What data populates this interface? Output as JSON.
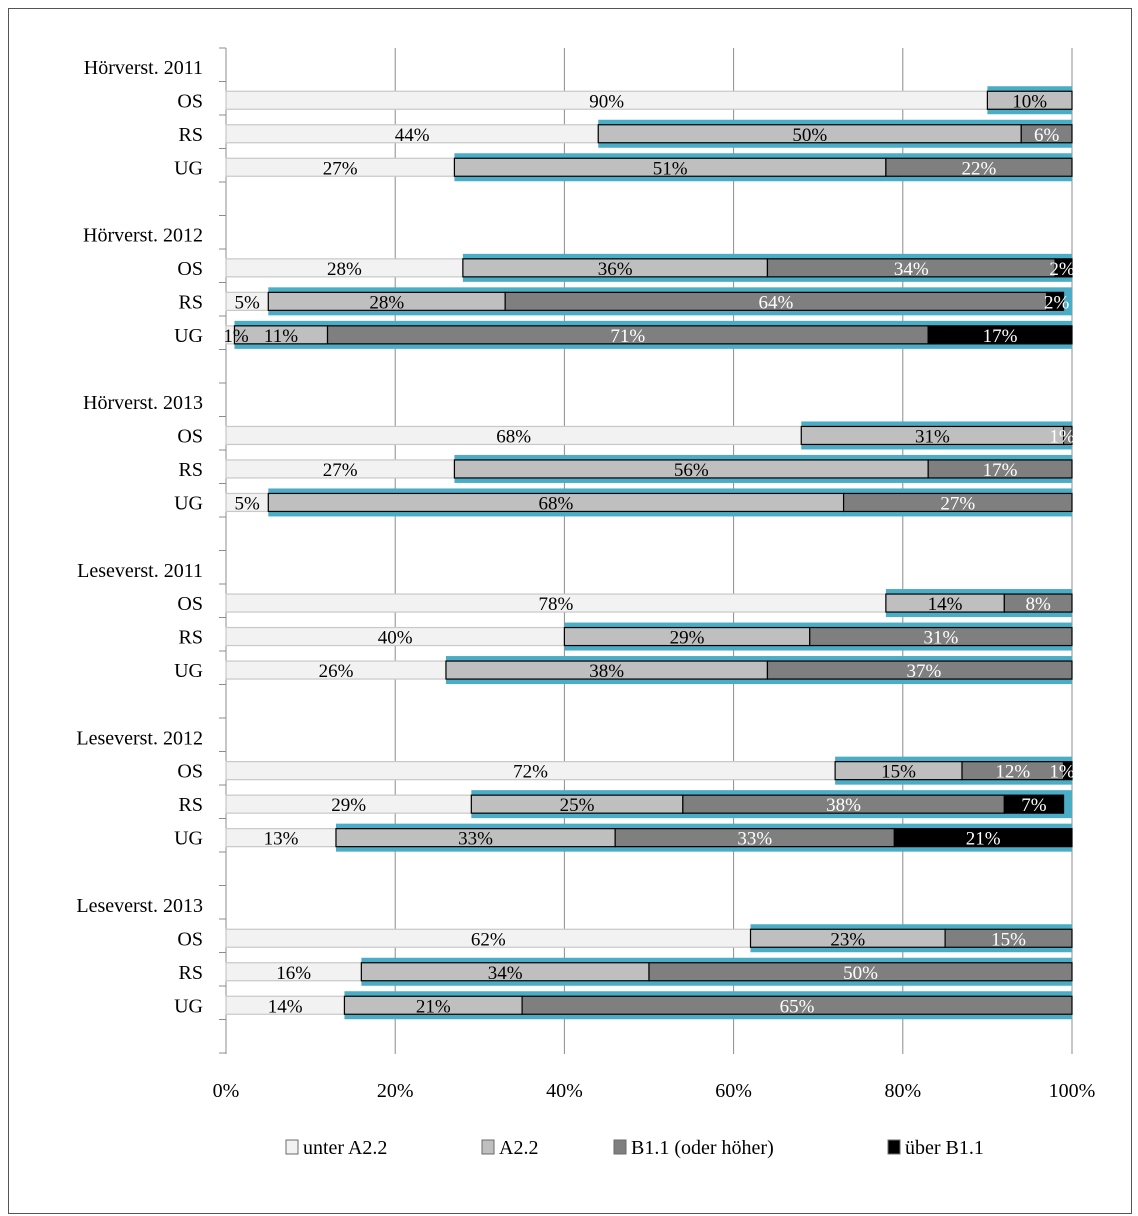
{
  "chart_data": {
    "type": "bar",
    "stacked": true,
    "orientation": "horizontal",
    "title": "",
    "xlabel": "",
    "ylabel": "",
    "xlim": [
      0,
      100
    ],
    "x_ticks": [
      "0%",
      "20%",
      "40%",
      "60%",
      "80%",
      "100%"
    ],
    "grid": "vertical",
    "legend_position": "bottom",
    "series": [
      {
        "name": "unter A2.2",
        "color": "#f2f2f2"
      },
      {
        "name": "A2.2",
        "color": "#bfbfbf"
      },
      {
        "name": "B1.1 (oder höher)",
        "color": "#7f7f7f"
      },
      {
        "name": "über B1.1",
        "color": "#000000"
      }
    ],
    "highlight_color": "#4bacc6",
    "groups": [
      {
        "title": "Hörverst. 2011",
        "rows": [
          {
            "label": "OS",
            "values": [
              90,
              10,
              0,
              0
            ],
            "labels": [
              "90%",
              "10%",
              "",
              ""
            ]
          },
          {
            "label": "RS",
            "values": [
              44,
              50,
              6,
              0
            ],
            "labels": [
              "44%",
              "50%",
              "6%",
              ""
            ]
          },
          {
            "label": "UG",
            "values": [
              27,
              51,
              22,
              0
            ],
            "labels": [
              "27%",
              "51%",
              "22%",
              ""
            ]
          }
        ]
      },
      {
        "title": "Hörverst. 2012",
        "rows": [
          {
            "label": "OS",
            "values": [
              28,
              36,
              34,
              2
            ],
            "labels": [
              "28%",
              "36%",
              "34%",
              "2%"
            ]
          },
          {
            "label": "RS",
            "values": [
              5,
              28,
              64,
              2
            ],
            "labels": [
              "5%",
              "28%",
              "64%",
              "2%"
            ]
          },
          {
            "label": "UG",
            "values": [
              1,
              11,
              71,
              17
            ],
            "labels": [
              "1%",
              "11%",
              "71%",
              "17%"
            ]
          }
        ]
      },
      {
        "title": "Hörverst. 2013",
        "rows": [
          {
            "label": "OS",
            "values": [
              68,
              31,
              1,
              0
            ],
            "labels": [
              "68%",
              "31%",
              "1%",
              ""
            ]
          },
          {
            "label": "RS",
            "values": [
              27,
              56,
              17,
              0
            ],
            "labels": [
              "27%",
              "56%",
              "17%",
              ""
            ]
          },
          {
            "label": "UG",
            "values": [
              5,
              68,
              27,
              0
            ],
            "labels": [
              "5%",
              "68%",
              "27%",
              ""
            ]
          }
        ]
      },
      {
        "title": "Leseverst. 2011",
        "rows": [
          {
            "label": "OS",
            "values": [
              78,
              14,
              8,
              0
            ],
            "labels": [
              "78%",
              "14%",
              "8%",
              ""
            ]
          },
          {
            "label": "RS",
            "values": [
              40,
              29,
              31,
              0
            ],
            "labels": [
              "40%",
              "29%",
              "31%",
              ""
            ]
          },
          {
            "label": "UG",
            "values": [
              26,
              38,
              37,
              0
            ],
            "labels": [
              "26%",
              "38%",
              "37%",
              ""
            ]
          }
        ]
      },
      {
        "title": "Leseverst. 2012",
        "rows": [
          {
            "label": "OS",
            "values": [
              72,
              15,
              12,
              1
            ],
            "labels": [
              "72%",
              "15%",
              "12%",
              "1%"
            ]
          },
          {
            "label": "RS",
            "values": [
              29,
              25,
              38,
              7
            ],
            "labels": [
              "29%",
              "25%",
              "38%",
              "7%"
            ]
          },
          {
            "label": "UG",
            "values": [
              13,
              33,
              33,
              21
            ],
            "labels": [
              "13%",
              "33%",
              "33%",
              "21%"
            ]
          }
        ]
      },
      {
        "title": "Leseverst. 2013",
        "rows": [
          {
            "label": "OS",
            "values": [
              62,
              23,
              15,
              0
            ],
            "labels": [
              "62%",
              "23%",
              "15%",
              ""
            ]
          },
          {
            "label": "RS",
            "values": [
              16,
              34,
              50,
              0
            ],
            "labels": [
              "16%",
              "34%",
              "50%",
              ""
            ]
          },
          {
            "label": "UG",
            "values": [
              14,
              21,
              65,
              0
            ],
            "labels": [
              "14%",
              "21%",
              "65%",
              ""
            ]
          }
        ]
      }
    ]
  }
}
